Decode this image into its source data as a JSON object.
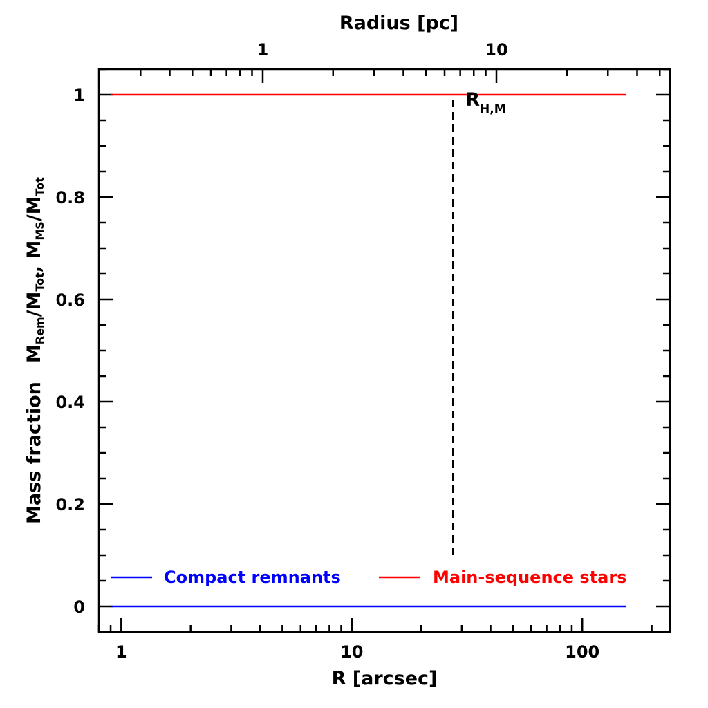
{
  "chart_data": {
    "type": "line",
    "xlabel": "R [arcsec]",
    "xlabel_top": "Radius [pc]",
    "ylabel": {
      "prefix": "Mass fraction",
      "parts": [
        {
          "t": "M"
        },
        {
          "t": "Rem",
          "sub": true
        },
        {
          "t": "/M"
        },
        {
          "t": "Tot",
          "sub": true
        },
        {
          "t": ", M"
        },
        {
          "t": "MS",
          "sub": true
        },
        {
          "t": "/M"
        },
        {
          "t": "Tot",
          "sub": true
        }
      ]
    },
    "x_scale": "log",
    "xlim": [
      0.8,
      240
    ],
    "ylim": [
      -0.05,
      1.05
    ],
    "x_ticks": [
      1,
      10,
      100
    ],
    "x_tick_labels": [
      "1",
      "10",
      "100"
    ],
    "x_top_ticks": [
      1,
      10
    ],
    "x_top_tick_labels": [
      "1",
      "10"
    ],
    "y_ticks": [
      0,
      0.2,
      0.4,
      0.6,
      0.8,
      1
    ],
    "y_tick_labels": [
      "0",
      "0.2",
      "0.4",
      "0.6",
      "0.8",
      "1"
    ],
    "series": [
      {
        "name": "Compact remnants",
        "color": "#0000ff",
        "x": [
          0.9,
          155
        ],
        "y": [
          0.0,
          0.0
        ]
      },
      {
        "name": "Main-sequence stars",
        "color": "#ff0000",
        "x": [
          0.9,
          155
        ],
        "y": [
          1.0,
          1.0
        ]
      }
    ],
    "annotations": [
      {
        "type": "vline",
        "x": 27.5,
        "y_range": [
          0.1,
          1.0
        ],
        "style": "dashed",
        "label": "R",
        "label_sub": "H,M"
      }
    ],
    "legend_placement": "bottom",
    "grid": false
  }
}
